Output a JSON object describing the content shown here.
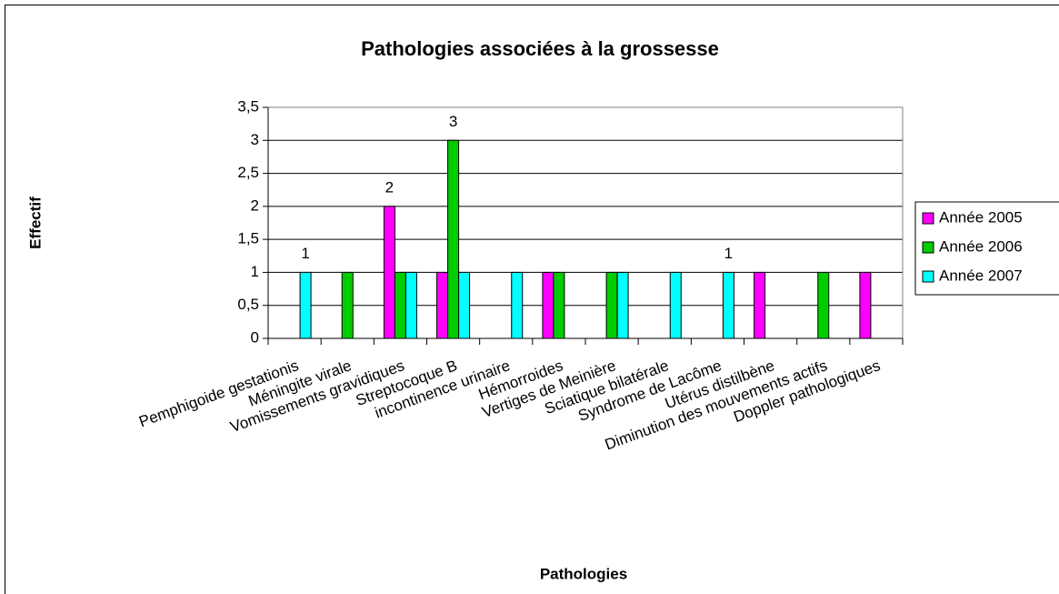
{
  "chart_data": {
    "type": "bar",
    "title": "Pathologies associées à la grossesse",
    "x_label": "Pathologies",
    "y_label": "Effectif",
    "categories": [
      "Pemphigoide gestationis",
      "Méningite virale",
      "Vomissements gravidiques",
      "Streptocoque B",
      "incontinence urinaire",
      "Hémorroides",
      "Vertiges de Meinière",
      "Sciatique bilatérale",
      "Syndrome de Lacôme",
      "Utérus distilbène",
      "Diminution des mouvements actifs",
      "Doppler pathologiques"
    ],
    "series": [
      {
        "name": "Année 2005",
        "color": "#ff00ff",
        "values": [
          null,
          null,
          2,
          1,
          null,
          1,
          null,
          null,
          null,
          1,
          null,
          1
        ],
        "value_labels": [
          null,
          null,
          "2",
          null,
          null,
          null,
          null,
          null,
          null,
          null,
          null,
          null
        ]
      },
      {
        "name": "Année 2006",
        "color": "#00cc00",
        "values": [
          null,
          1,
          1,
          3,
          null,
          1,
          1,
          null,
          null,
          null,
          1,
          null
        ],
        "value_labels": [
          null,
          null,
          null,
          "3",
          null,
          null,
          null,
          null,
          null,
          null,
          null,
          null
        ]
      },
      {
        "name": "Année 2007",
        "color": "#00ffff",
        "values": [
          1,
          null,
          1,
          1,
          1,
          null,
          1,
          1,
          1,
          null,
          null,
          null
        ],
        "value_labels": [
          "1",
          null,
          null,
          null,
          null,
          null,
          null,
          null,
          "1",
          null,
          null,
          null
        ]
      }
    ],
    "ylim": [
      0,
      3.5
    ],
    "yticks": [
      0,
      {
        "value": 0.5,
        "label": "0,5"
      },
      1,
      {
        "value": 1.5,
        "label": "1,5"
      },
      2,
      {
        "value": 2.5,
        "label": "2,5"
      },
      3,
      {
        "value": 3.5,
        "label": "3,5"
      }
    ],
    "grid": true,
    "legend": "right"
  }
}
